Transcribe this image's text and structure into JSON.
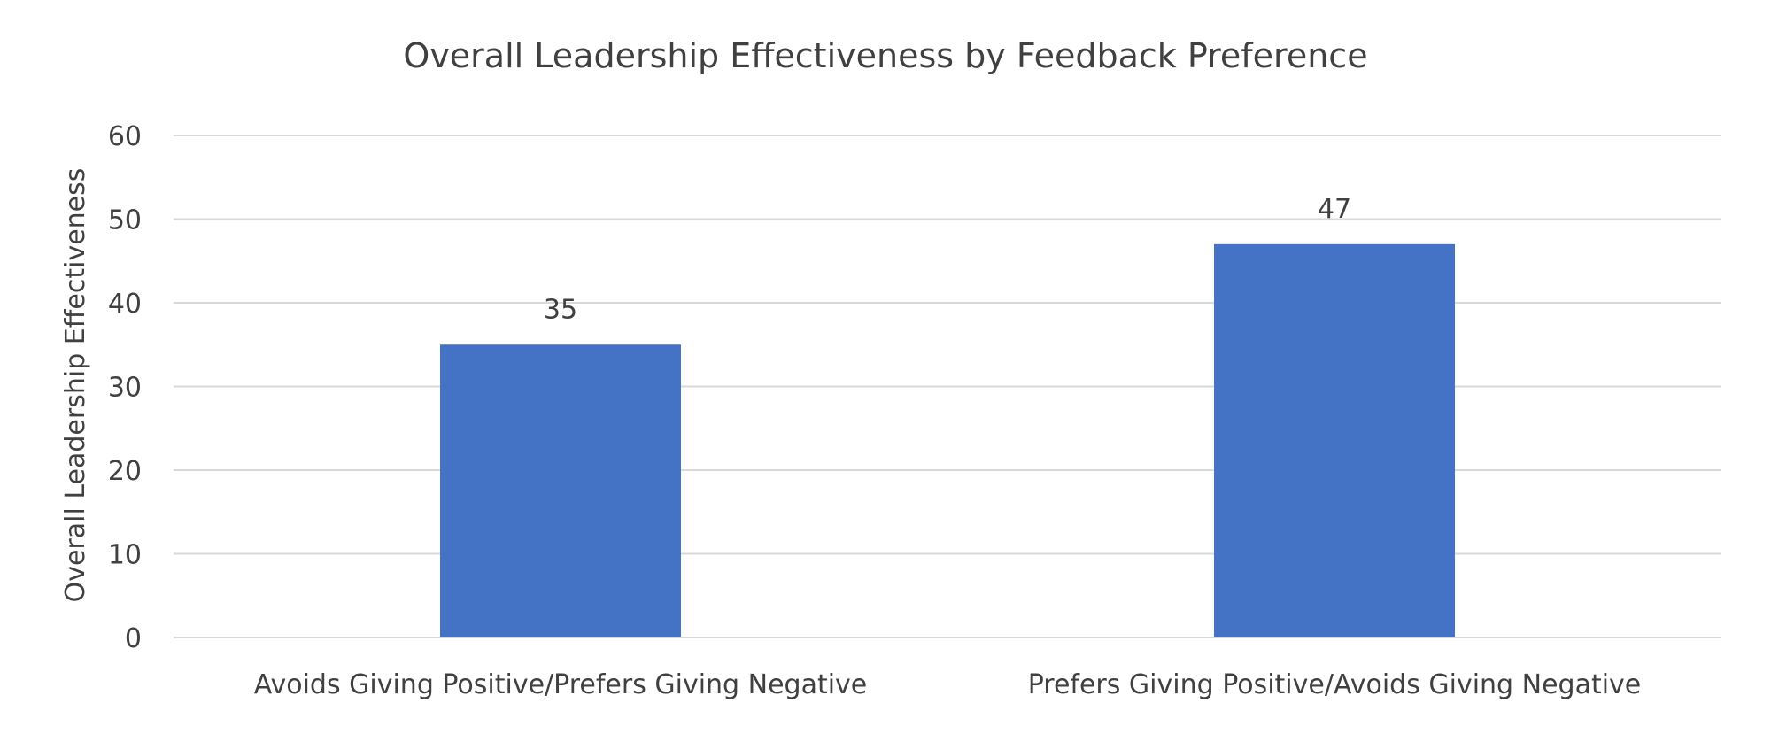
{
  "chart_data": {
    "type": "bar",
    "title": "Overall Leadership Effectiveness by Feedback Preference",
    "xlabel": "",
    "ylabel": "Overall Leadership Effectiveness",
    "categories": [
      "Avoids Giving Positive/Prefers Giving Negative",
      "Prefers Giving Positive/Avoids Giving Negative"
    ],
    "values": [
      35,
      47
    ],
    "data_labels": [
      "35",
      "47"
    ],
    "ylim": [
      0,
      60
    ],
    "yticks": [
      0,
      10,
      20,
      30,
      40,
      50,
      60
    ],
    "ytick_labels": [
      "0",
      "10",
      "20",
      "30",
      "40",
      "50",
      "60"
    ],
    "grid": true,
    "legend": "none",
    "colors": {
      "bar": "#4472C4",
      "gridline": "#D9D9D9",
      "text": "#404040",
      "background": "#FFFFFF"
    }
  }
}
